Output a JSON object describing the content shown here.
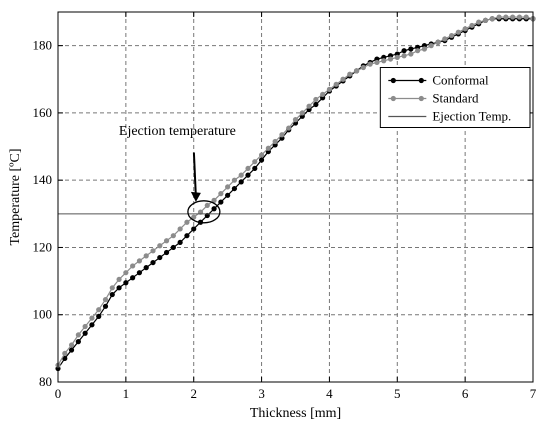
{
  "chart_data": {
    "type": "line",
    "xlabel": "Thickness [mm]",
    "ylabel": "Temperature [ºC]",
    "xlim": [
      0,
      7
    ],
    "ylim": [
      80,
      190
    ],
    "xticks": [
      0,
      1,
      2,
      3,
      4,
      5,
      6,
      7
    ],
    "yticks": [
      80,
      100,
      120,
      140,
      160,
      180
    ],
    "grid": true,
    "legend_position": "top-right",
    "series": [
      {
        "name": "Conformal",
        "color": "#000000",
        "marker": "dot",
        "x": [
          0.0,
          0.1,
          0.2,
          0.3,
          0.4,
          0.5,
          0.6,
          0.7,
          0.8,
          0.9,
          1.0,
          1.1,
          1.2,
          1.3,
          1.4,
          1.5,
          1.6,
          1.7,
          1.8,
          1.9,
          2.0,
          2.1,
          2.2,
          2.3,
          2.4,
          2.5,
          2.6,
          2.7,
          2.8,
          2.9,
          3.0,
          3.1,
          3.2,
          3.3,
          3.4,
          3.5,
          3.6,
          3.7,
          3.8,
          3.9,
          4.0,
          4.1,
          4.2,
          4.3,
          4.4,
          4.5,
          4.6,
          4.7,
          4.8,
          4.9,
          5.0,
          5.1,
          5.2,
          5.3,
          5.4,
          5.5,
          5.6,
          5.7,
          5.8,
          5.9,
          6.0,
          6.1,
          6.2,
          6.3,
          6.4,
          6.5,
          6.6,
          6.7,
          6.8,
          6.9,
          7.0
        ],
        "y": [
          84.0,
          87.0,
          89.5,
          92.0,
          94.5,
          97.0,
          99.5,
          102.5,
          106.0,
          108.0,
          109.5,
          111.0,
          112.5,
          114.0,
          115.5,
          117.0,
          118.5,
          120.0,
          121.5,
          123.5,
          125.5,
          127.5,
          129.5,
          131.5,
          133.5,
          135.5,
          137.5,
          139.5,
          141.5,
          143.5,
          146.0,
          148.5,
          150.5,
          152.5,
          155.0,
          157.0,
          159.0,
          161.0,
          162.5,
          164.5,
          166.5,
          168.0,
          169.5,
          171.0,
          172.5,
          174.0,
          175.0,
          176.0,
          176.5,
          177.0,
          177.5,
          178.5,
          179.0,
          179.5,
          180.0,
          180.5,
          181.0,
          181.5,
          182.5,
          183.5,
          184.5,
          185.5,
          186.5,
          187.5,
          188.0,
          188.0,
          188.0,
          188.0,
          188.0,
          188.0,
          188.0
        ]
      },
      {
        "name": "Standard",
        "color": "#8c8c8c",
        "marker": "dot",
        "x": [
          0.0,
          0.1,
          0.2,
          0.3,
          0.4,
          0.5,
          0.6,
          0.7,
          0.8,
          0.9,
          1.0,
          1.1,
          1.2,
          1.3,
          1.4,
          1.5,
          1.6,
          1.7,
          1.8,
          1.9,
          2.0,
          2.1,
          2.2,
          2.3,
          2.4,
          2.5,
          2.6,
          2.7,
          2.8,
          2.9,
          3.0,
          3.1,
          3.2,
          3.3,
          3.4,
          3.5,
          3.6,
          3.7,
          3.8,
          3.9,
          4.0,
          4.1,
          4.2,
          4.3,
          4.4,
          4.5,
          4.6,
          4.7,
          4.8,
          4.9,
          5.0,
          5.1,
          5.2,
          5.3,
          5.4,
          5.5,
          5.6,
          5.7,
          5.8,
          5.9,
          6.0,
          6.1,
          6.2,
          6.3,
          6.4,
          6.5,
          6.6,
          6.7,
          6.8,
          6.9,
          7.0
        ],
        "y": [
          85.0,
          88.5,
          91.0,
          94.0,
          96.5,
          99.0,
          101.5,
          104.5,
          108.0,
          110.5,
          112.5,
          114.5,
          116.0,
          117.5,
          119.0,
          120.5,
          122.0,
          123.5,
          125.5,
          127.5,
          129.0,
          130.5,
          132.5,
          134.0,
          136.0,
          138.0,
          140.0,
          141.5,
          143.5,
          145.5,
          147.5,
          149.5,
          151.5,
          153.5,
          155.5,
          158.0,
          160.0,
          162.0,
          164.0,
          165.5,
          167.0,
          168.5,
          170.0,
          171.5,
          172.5,
          173.5,
          174.5,
          175.0,
          175.5,
          176.0,
          176.5,
          177.0,
          177.5,
          178.5,
          179.0,
          180.0,
          181.0,
          182.0,
          183.0,
          184.0,
          185.0,
          186.0,
          187.0,
          187.5,
          188.0,
          188.5,
          188.5,
          188.5,
          188.5,
          188.5,
          188.0
        ]
      },
      {
        "name": "Ejection Temp.",
        "color": "#555555",
        "marker": "none",
        "x": [
          0,
          7
        ],
        "y": [
          130,
          130
        ]
      }
    ],
    "annotations": [
      {
        "text": "Ejection temperature",
        "target_x": 2.15,
        "target_y": 130
      }
    ]
  }
}
